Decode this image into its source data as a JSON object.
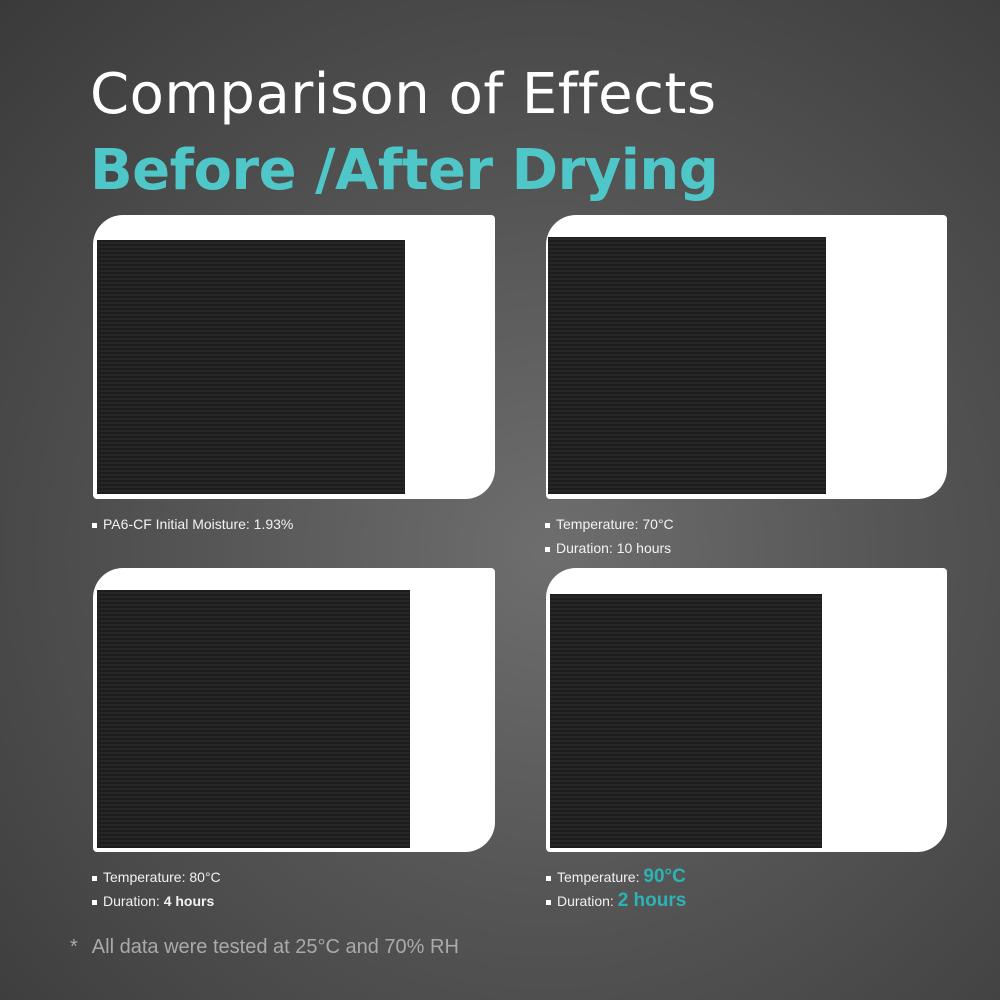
{
  "title": "Comparison of Effects",
  "subtitle": "Before /After Drying",
  "accent": "#4fc7c9",
  "panels": [
    {
      "lines": [
        {
          "label": "PA6-CF Initial Moisture: 1.93%"
        }
      ]
    },
    {
      "lines": [
        {
          "label": "Temperature: ",
          "value": "70°C"
        },
        {
          "label": "Duration: ",
          "value": "10 hours"
        }
      ]
    },
    {
      "lines": [
        {
          "label": "Temperature: ",
          "value": "80°C"
        },
        {
          "label": "Duration: ",
          "value": "4 hours"
        }
      ]
    },
    {
      "lines": [
        {
          "label": "Temperature: ",
          "value": "90°C"
        },
        {
          "label": "Duration: ",
          "value": "2 hours"
        }
      ]
    }
  ],
  "footnote": {
    "marker": "*",
    "text": "All data were tested at 25°C and 70% RH"
  }
}
